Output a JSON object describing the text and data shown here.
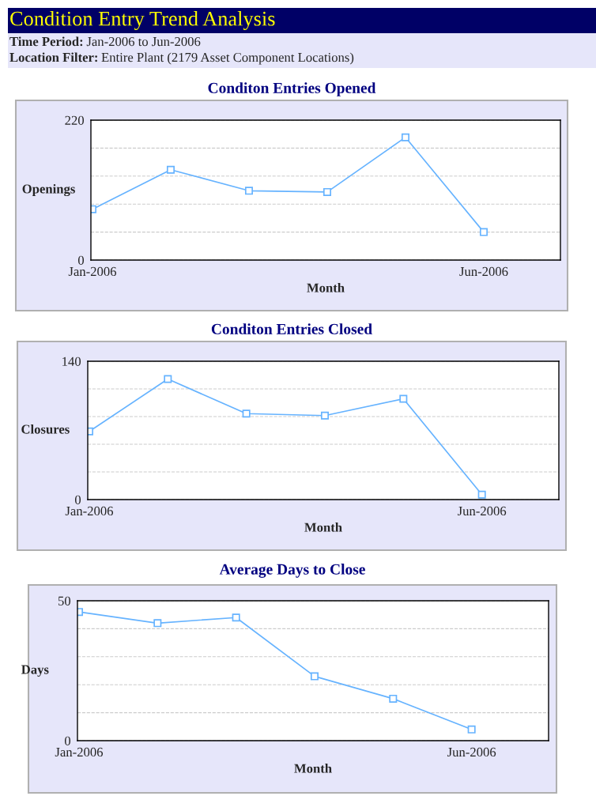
{
  "chart_data": [
    {
      "type": "line",
      "title": "Conditon Entries Opened",
      "xlabel": "Month",
      "ylabel": "Openings",
      "annotations": [
        "Condition Entry Trend Analysis",
        "Time Period: Jan-2006 to Jun-2006",
        "Location Filter: Entire Plant (2179 Asset Component Locations)"
      ],
      "categories": [
        "Jan-2006",
        null,
        null,
        null,
        null,
        "Jun-2006"
      ],
      "series": [
        {
          "color": "#66b3ff",
          "values": [
            80,
            142,
            109,
            107,
            193,
            44
          ]
        }
      ],
      "ylim": [
        0,
        220
      ],
      "yticks": [
        0,
        {
          "value": 44,
          "label": null
        },
        {
          "value": 88,
          "label": null
        },
        {
          "value": 132,
          "label": null
        },
        {
          "value": 176,
          "label": null
        },
        220
      ],
      "grid": "y",
      "marker": "square",
      "line_style": "solid"
    },
    {
      "type": "line",
      "title": "Conditon Entries Closed",
      "xlabel": "Month",
      "ylabel": "Closures",
      "categories": [
        "Jan-2006",
        null,
        null,
        null,
        null,
        "Jun-2006"
      ],
      "series": [
        {
          "color": "#66b3ff",
          "values": [
            69,
            122,
            87,
            85,
            102,
            5
          ]
        }
      ],
      "ylim": [
        0,
        140
      ],
      "yticks": [
        0,
        {
          "value": 28,
          "label": null
        },
        {
          "value": 56,
          "label": null
        },
        {
          "value": 84,
          "label": null
        },
        {
          "value": 112,
          "label": null
        },
        140
      ],
      "grid": "y",
      "marker": "square",
      "line_style": "solid"
    },
    {
      "type": "line",
      "title": "Average Days to Close",
      "xlabel": "Month",
      "ylabel": "Days",
      "categories": [
        "Jan-2006",
        null,
        null,
        null,
        null,
        "Jun-2006"
      ],
      "series": [
        {
          "color": "#66b3ff",
          "values": [
            46,
            42,
            44,
            23,
            15,
            4
          ]
        }
      ],
      "ylim": [
        0,
        50
      ],
      "yticks": [
        0,
        {
          "value": 10,
          "label": null
        },
        {
          "value": 20,
          "label": null
        },
        {
          "value": 30,
          "label": null
        },
        {
          "value": 40,
          "label": null
        },
        50
      ],
      "grid": "y",
      "marker": "square",
      "line_style": "solid"
    }
  ]
}
